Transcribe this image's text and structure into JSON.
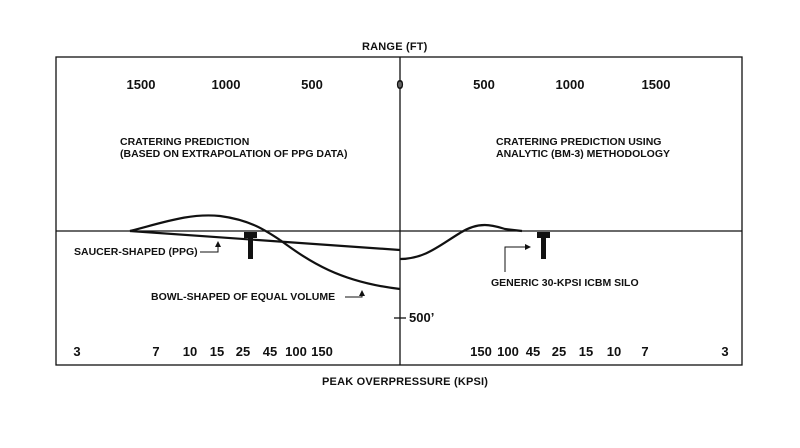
{
  "top_axis": {
    "title": "RANGE (FT)",
    "ticks": [
      "1500",
      "1000",
      "500",
      "0",
      "500",
      "1000",
      "1500"
    ]
  },
  "bottom_axis": {
    "title": "PEAK OVERPRESSURE (KPSI)",
    "left_ticks": [
      "3",
      "7",
      "10",
      "15",
      "25",
      "45",
      "100",
      "150"
    ],
    "right_ticks": [
      "150",
      "100",
      "45",
      "25",
      "15",
      "10",
      "7",
      "3"
    ]
  },
  "left_panel": {
    "line1": "CRATERING PREDICTION",
    "line2": "(BASED ON EXTRAPOLATION OF PPG DATA)"
  },
  "right_panel": {
    "line1": "CRATERING PREDICTION USING",
    "line2": "ANALYTIC (BM-3) METHODOLOGY"
  },
  "labels": {
    "saucer": "SAUCER-SHAPED (PPG)",
    "bowl": "BOWL-SHAPED OF EQUAL VOLUME",
    "silo": "GENERIC 30-KPSI ICBM SILO",
    "depth": "500’"
  }
}
